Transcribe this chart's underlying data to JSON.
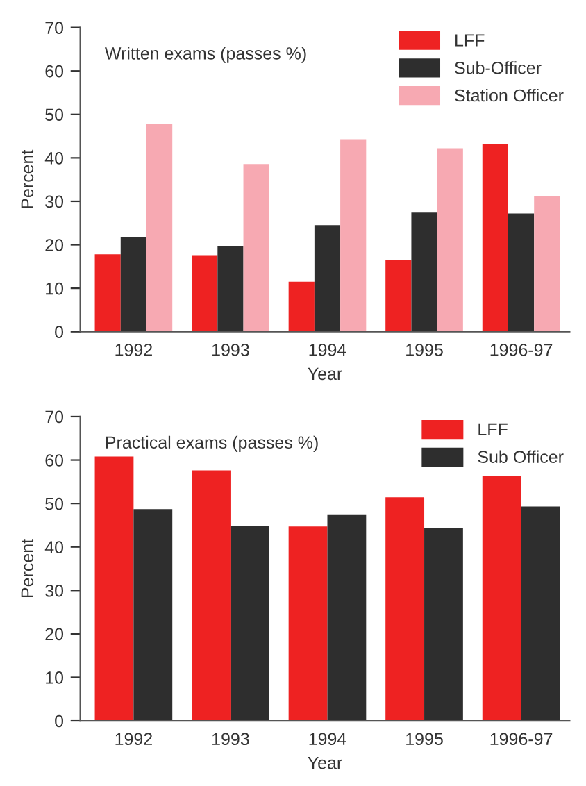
{
  "chart_data": [
    {
      "type": "bar",
      "title": "Written exams (passes %)",
      "xlabel": "Year",
      "ylabel": "Percent",
      "categories": [
        "1992",
        "1993",
        "1994",
        "1995",
        "1996-97"
      ],
      "series": [
        {
          "name": "LFF",
          "color": "#ee2222",
          "values": [
            17.8,
            17.6,
            11.5,
            16.5,
            43.2
          ]
        },
        {
          "name": "Sub-Officer",
          "color": "#2e2e2e",
          "values": [
            21.8,
            19.7,
            24.5,
            27.4,
            27.2
          ]
        },
        {
          "name": "Station Officer",
          "color": "#f7a9b2",
          "values": [
            47.8,
            38.6,
            44.3,
            42.2,
            31.2
          ]
        }
      ],
      "ylim": [
        0,
        70
      ],
      "yticks": [
        0,
        10,
        20,
        30,
        40,
        50,
        60,
        70
      ],
      "grid": false,
      "legend": "top right"
    },
    {
      "type": "bar",
      "title": "Practical exams (passes %)",
      "xlabel": "Year",
      "ylabel": "Percent",
      "categories": [
        "1992",
        "1993",
        "1994",
        "1995",
        "1996-97"
      ],
      "series": [
        {
          "name": "LFF",
          "color": "#ee2222",
          "values": [
            60.8,
            57.6,
            44.7,
            51.4,
            56.3
          ]
        },
        {
          "name": "Sub Officer",
          "color": "#2e2e2e",
          "values": [
            48.7,
            44.8,
            47.5,
            44.3,
            49.3
          ]
        }
      ],
      "ylim": [
        0,
        70
      ],
      "yticks": [
        0,
        10,
        20,
        30,
        40,
        50,
        60,
        70
      ],
      "grid": false,
      "legend": "top right"
    }
  ]
}
